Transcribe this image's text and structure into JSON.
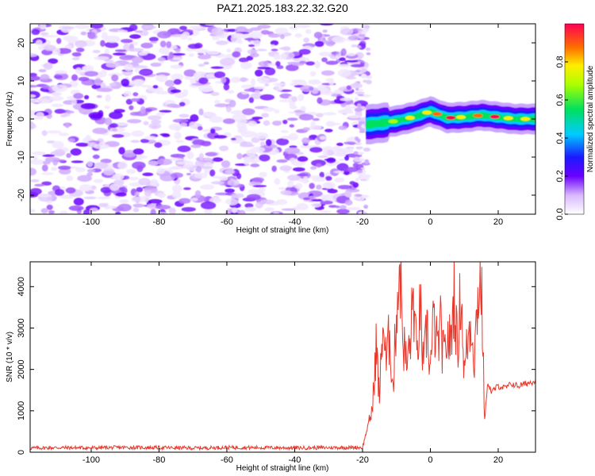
{
  "chart_data": [
    {
      "type": "heatmap",
      "title": "PAZ1.2025.183.22.32.G20",
      "xlabel": "Height of straight line (km)",
      "ylabel": "Frequency (Hz)",
      "xlim": [
        -118,
        31
      ],
      "ylim": [
        -25,
        25
      ],
      "xticks": [
        -100,
        -80,
        -60,
        -40,
        -20,
        0,
        20
      ],
      "yticks": [
        -20,
        -10,
        0,
        10,
        20
      ],
      "colorbar": {
        "label": "Normalized spectral amplitude",
        "range": [
          0.0,
          1.0
        ],
        "ticks": [
          "0.0",
          "0.2",
          "0.4",
          "0.6",
          "0.8"
        ]
      },
      "description_of_signal": {
        "noise_region_x": [
          -118,
          -19
        ],
        "signal_region_x": [
          -19,
          31
        ],
        "signal_frequency_path": [
          [
            -19,
            -1.5
          ],
          [
            -14,
            -1
          ],
          [
            -10,
            -0.5
          ],
          [
            -5,
            0.5
          ],
          [
            0,
            2
          ],
          [
            5,
            0.3
          ],
          [
            10,
            0.5
          ],
          [
            15,
            1
          ],
          [
            20,
            0.5
          ],
          [
            25,
            0
          ],
          [
            31,
            0
          ]
        ]
      },
      "grid": false
    },
    {
      "type": "line",
      "xlabel": "Height of straight line (km)",
      "ylabel": "SNR (10 * v/v)",
      "xlim": [
        -118,
        31
      ],
      "ylim": [
        0,
        4600
      ],
      "xticks": [
        -100,
        -80,
        -60,
        -40,
        -20,
        0,
        20
      ],
      "yticks": [
        0,
        1000,
        2000,
        3000,
        4000
      ],
      "series_color": "#e8392c",
      "x": [
        -118,
        -110,
        -100,
        -90,
        -80,
        -70,
        -60,
        -50,
        -40,
        -30,
        -20,
        -17,
        -16,
        -15,
        -14,
        -13,
        -12,
        -11,
        -10,
        -9,
        -8,
        -7,
        -6,
        -5,
        -4,
        -3,
        -2,
        -1,
        0,
        1,
        2,
        3,
        4,
        5,
        6,
        7,
        8,
        9,
        10,
        11,
        12,
        13,
        14,
        15,
        16,
        17,
        18,
        20,
        22,
        24,
        26,
        28,
        30,
        31
      ],
      "values": [
        100,
        110,
        105,
        115,
        110,
        100,
        115,
        110,
        105,
        110,
        115,
        1100,
        2600,
        1300,
        3200,
        2100,
        2900,
        1500,
        3400,
        4550,
        2700,
        2100,
        2600,
        3800,
        2200,
        3500,
        1900,
        3100,
        2000,
        3200,
        2500,
        3000,
        2200,
        2800,
        2600,
        3900,
        2400,
        4000,
        1900,
        2700,
        3200,
        2300,
        3800,
        4150,
        800,
        1700,
        1450,
        1600,
        1550,
        1650,
        1600,
        1650,
        1700,
        1750
      ],
      "grid": false
    }
  ]
}
